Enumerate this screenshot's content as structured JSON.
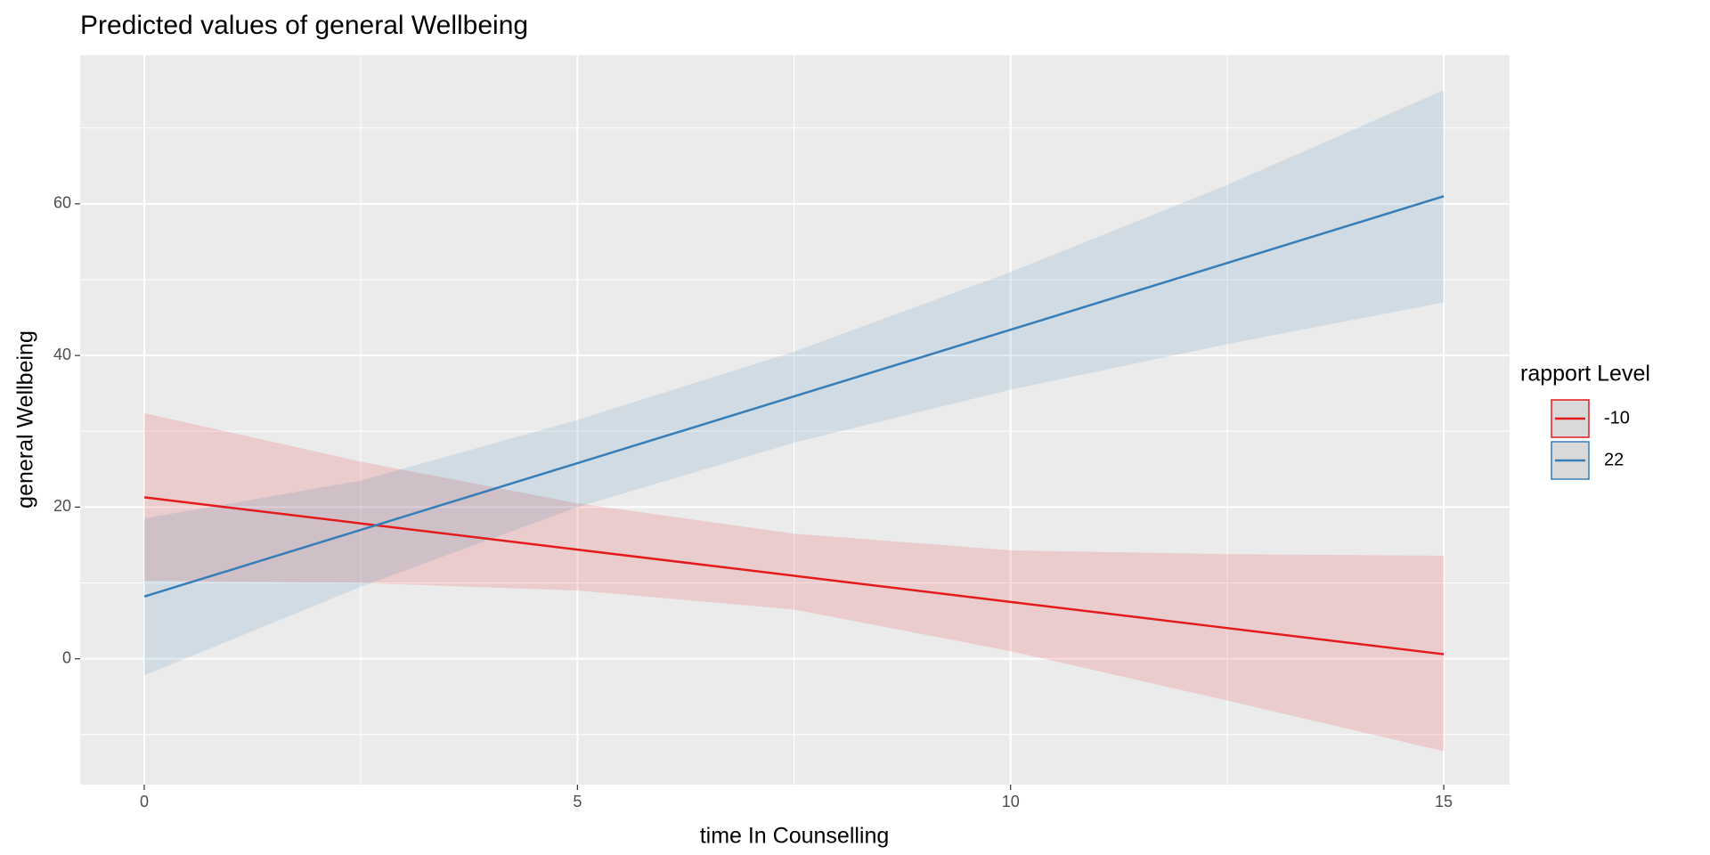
{
  "chart_data": {
    "type": "line",
    "title": "Predicted values of general Wellbeing",
    "x_label": "time In Counselling",
    "y_label": "general Wellbeing",
    "legend_title": "rapport Level",
    "legend": "right",
    "grid": true,
    "x": [
      0,
      2.5,
      5,
      7.5,
      10,
      12.5,
      15
    ],
    "series": [
      {
        "name": "-10",
        "color": "#e41a1c",
        "values": [
          21.3,
          17.85,
          14.4,
          10.95,
          7.5,
          4.05,
          0.6
        ],
        "lower": [
          10.3,
          10,
          9,
          6.5,
          1,
          -5.5,
          -12.2
        ],
        "upper": [
          32.4,
          26,
          20.5,
          16.5,
          14.3,
          13.8,
          13.6
        ]
      },
      {
        "name": "22",
        "color": "#377eb8",
        "values": [
          8.2,
          17,
          25.8,
          34.6,
          43.4,
          52.2,
          61
        ],
        "lower": [
          -2.2,
          9.5,
          20,
          28.5,
          35.5,
          41.5,
          47
        ],
        "upper": [
          18.5,
          23.5,
          31.5,
          40.5,
          51,
          62.5,
          75
        ]
      }
    ],
    "xlim": [
      -0.74,
      15.76
    ],
    "ylim": [
      -16.6,
      79.6
    ],
    "xticks": [
      0,
      5,
      10,
      15
    ],
    "yticks": [
      0,
      20,
      40,
      60
    ],
    "xminor": [
      2.5,
      7.5,
      12.5
    ],
    "yminor": [
      -10,
      10,
      30,
      50,
      70
    ]
  }
}
